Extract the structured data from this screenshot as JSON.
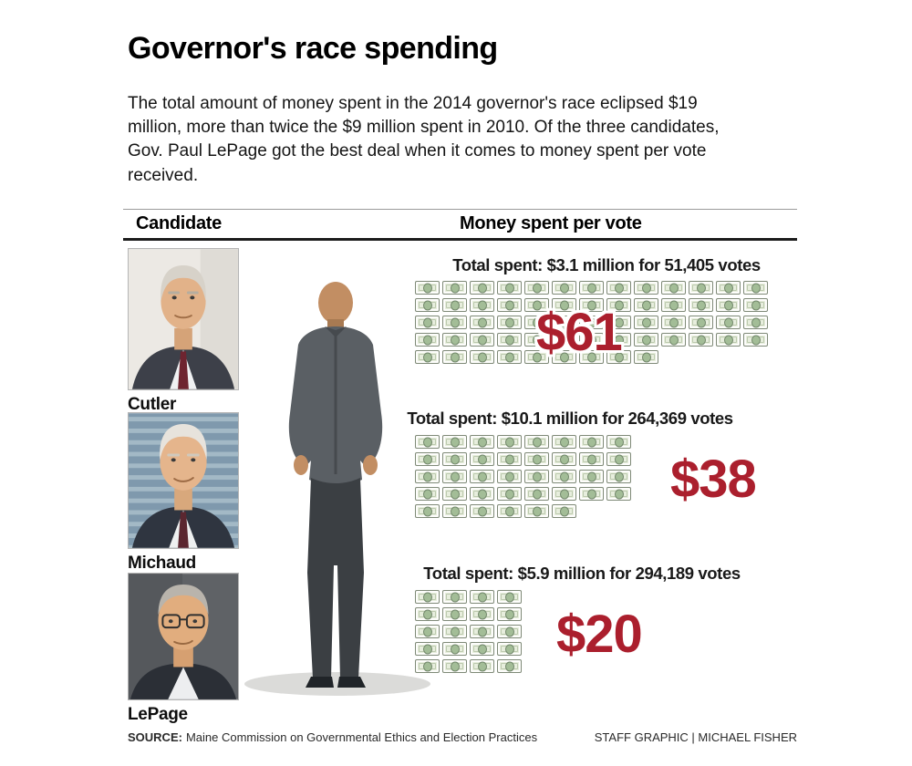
{
  "page": {
    "title": "Governor's race spending",
    "intro": "The total amount of money spent in the 2014 governor's race eclipsed $19 million, more than twice the $9 million spent in 2010. Of the three candidates, Gov. Paul LePage got the best deal when it comes to money spent per vote received.",
    "column_headers": {
      "candidate": "Candidate",
      "money": "Money spent per vote"
    },
    "source_label": "SOURCE:",
    "source_text": "Maine Commission on Governmental Ethics and Election Practices",
    "credit": "STAFF GRAPHIC | MICHAEL FISHER"
  },
  "colors": {
    "accent_red": "#ab1f2d",
    "bill_face": "#e7eedd",
    "bill_oval": "#a3bd97"
  },
  "icons": {
    "pictogram_icon": "dollar-bill-icon"
  },
  "chart_data": {
    "type": "pictogram",
    "title": "Governor's race spending",
    "subtitle": "Money spent per vote, 2014 Maine governor's race",
    "series": [
      {
        "candidate": "Cutler",
        "caption": "Total spent: $3.1 million for 51,405 votes",
        "total_spent": "$3.1 million",
        "votes": 51405,
        "dollars_per_vote": 61,
        "amount_label": "$61"
      },
      {
        "candidate": "Michaud",
        "caption": "Total spent: $10.1 million for 264,369 votes",
        "total_spent": "$10.1 million",
        "votes": 264369,
        "dollars_per_vote": 38,
        "amount_label": "$38"
      },
      {
        "candidate": "LePage",
        "caption": "Total spent: $5.9 million for 294,189 votes",
        "total_spent": "$5.9 million",
        "votes": 294189,
        "dollars_per_vote": 20,
        "amount_label": "$20"
      }
    ]
  }
}
